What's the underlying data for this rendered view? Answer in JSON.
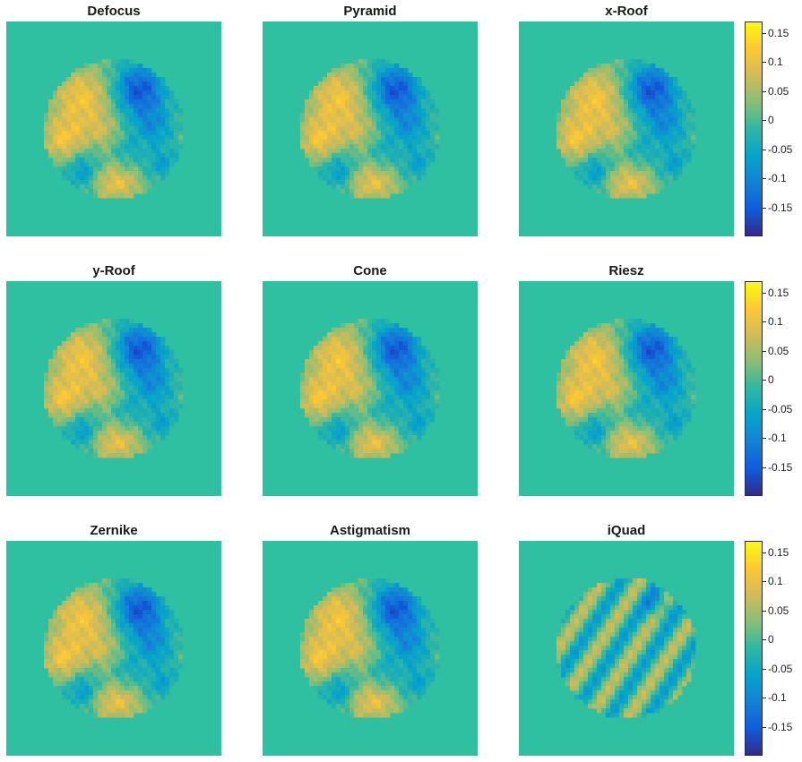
{
  "chart_data": {
    "type": "heatmap",
    "panels": [
      {
        "title": "Defocus",
        "pattern": "turbulence"
      },
      {
        "title": "Pyramid",
        "pattern": "turbulence"
      },
      {
        "title": "x-Roof",
        "pattern": "turbulence"
      },
      {
        "title": "y-Roof",
        "pattern": "turbulence"
      },
      {
        "title": "Cone",
        "pattern": "turbulence"
      },
      {
        "title": "Riesz",
        "pattern": "turbulence"
      },
      {
        "title": "Zernike",
        "pattern": "turbulence"
      },
      {
        "title": "Astigmatism",
        "pattern": "turbulence"
      },
      {
        "title": "iQuad",
        "pattern": "diagonal-stripes"
      }
    ],
    "colorbar": {
      "colormap": "parula",
      "range": [
        -0.2,
        0.17
      ],
      "ticks": [
        0.15,
        0.1,
        0.05,
        0,
        -0.05,
        -0.1,
        -0.15
      ],
      "tick_labels": [
        "0.15",
        "0.1",
        "0.05",
        "0",
        "-0.05",
        "-0.1",
        "-0.15"
      ]
    },
    "grid": false,
    "background_value": 0,
    "pupil_shape": "circle"
  },
  "colors": {
    "background_teal": "#2fc0a1",
    "parula_stops": [
      "#352a87",
      "#0f5cdd",
      "#1481d6",
      "#06a4ca",
      "#2eb7a4",
      "#87bf77",
      "#d1bb59",
      "#fec832",
      "#f9fb0e"
    ]
  }
}
